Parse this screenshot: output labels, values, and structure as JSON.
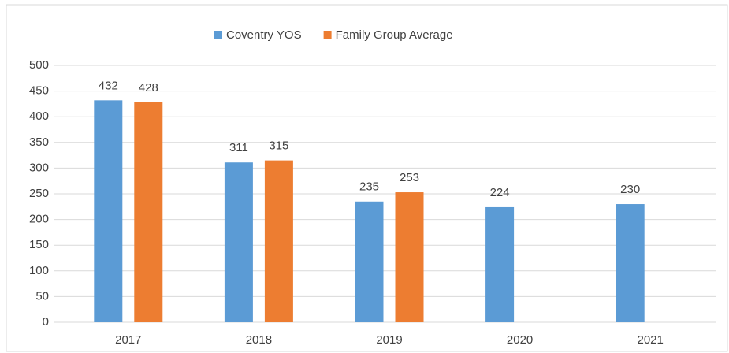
{
  "chart_data": {
    "type": "bar",
    "categories": [
      "2017",
      "2018",
      "2019",
      "2020",
      "2021"
    ],
    "series": [
      {
        "name": "Coventry YOS",
        "color": "#5b9bd5",
        "values": [
          432,
          311,
          235,
          224,
          230
        ]
      },
      {
        "name": "Family Group Average",
        "color": "#ed7d31",
        "values": [
          428,
          315,
          253,
          null,
          null
        ]
      }
    ],
    "ylim": [
      0,
      500
    ],
    "yticks": [
      0,
      50,
      100,
      150,
      200,
      250,
      300,
      350,
      400,
      450,
      500
    ],
    "grid": true,
    "legend": "top"
  }
}
